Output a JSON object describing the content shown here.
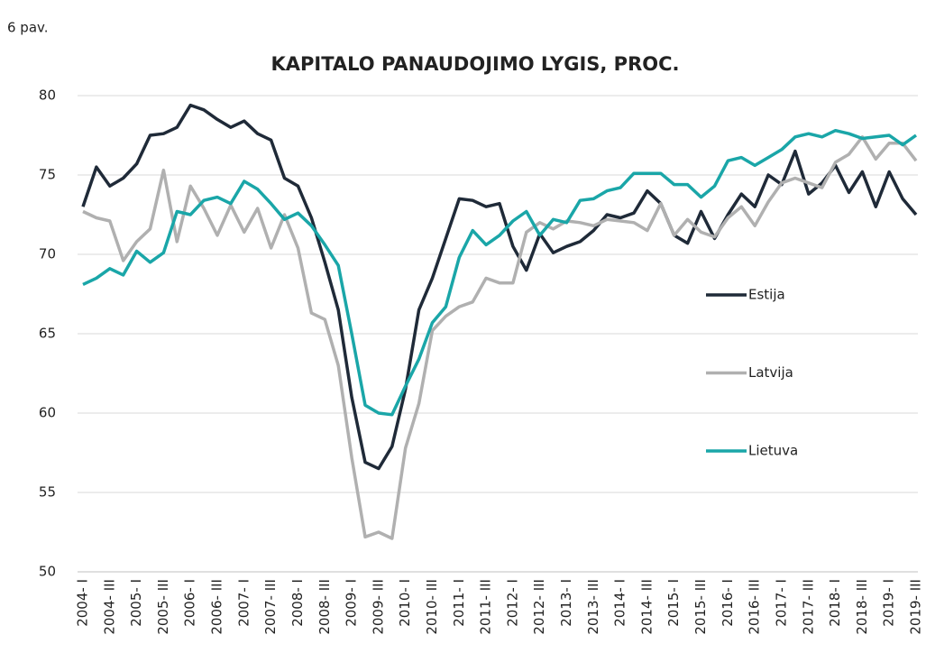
{
  "figure_label": "6 pav.",
  "chart_data": {
    "type": "line",
    "title": "KAPITALO PANAUDOJIMO LYGIS, PROC.",
    "categories": [
      "2004- I",
      null,
      "2004- III",
      null,
      "2005- I",
      null,
      "2005- III",
      null,
      "2006- I",
      null,
      "2006- III",
      null,
      "2007- I",
      null,
      "2007- III",
      null,
      "2008- I",
      null,
      "2008- III",
      null,
      "2009- I",
      null,
      "2009- III",
      null,
      "2010- I",
      null,
      "2010- III",
      null,
      "2011- I",
      null,
      "2011- III",
      null,
      "2012- I",
      null,
      "2012- III",
      null,
      "2013- I",
      null,
      "2013- III",
      null,
      "2014- I",
      null,
      "2014- III",
      null,
      "2015- I",
      null,
      "2015- III",
      null,
      "2016- I",
      null,
      "2016- III",
      null,
      "2017- I",
      null,
      "2017- III",
      null,
      "2018- I",
      null,
      "2018- III",
      null,
      "2019- I",
      null,
      "2019- III"
    ],
    "series": [
      {
        "name": "Estija",
        "color": "#1f2a38",
        "values": [
          73.0,
          75.5,
          74.3,
          74.8,
          75.7,
          77.5,
          77.6,
          78.0,
          79.4,
          79.1,
          78.5,
          78.0,
          78.4,
          77.6,
          77.2,
          74.8,
          74.3,
          72.3,
          69.5,
          66.5,
          61.0,
          56.9,
          56.5,
          57.9,
          61.5,
          66.5,
          68.5,
          71.0,
          73.5,
          73.4,
          73.0,
          73.2,
          70.5,
          69.0,
          71.3,
          70.1,
          70.5,
          70.8,
          71.5,
          72.5,
          72.3,
          72.6,
          74.0,
          73.2,
          71.2,
          70.7,
          72.7,
          71.0,
          72.5,
          73.8,
          73.0,
          75.0,
          74.4,
          76.5,
          73.8,
          74.5,
          75.6,
          73.9,
          75.2,
          73.0,
          75.2,
          73.5,
          72.5
        ]
      },
      {
        "name": "Latvija",
        "color": "#b0b0b0",
        "values": [
          72.7,
          72.3,
          72.1,
          69.6,
          70.8,
          71.6,
          75.3,
          70.8,
          74.3,
          72.9,
          71.2,
          73.1,
          71.4,
          72.9,
          70.4,
          72.5,
          70.4,
          66.3,
          65.9,
          63.0,
          57.2,
          52.2,
          52.5,
          52.1,
          57.8,
          60.6,
          65.2,
          66.1,
          66.7,
          67.0,
          68.5,
          68.2,
          68.2,
          71.4,
          72.0,
          71.6,
          72.1,
          72.0,
          71.8,
          72.2,
          72.1,
          72.0,
          71.5,
          73.2,
          71.2,
          72.2,
          71.4,
          71.1,
          72.3,
          73.0,
          71.8,
          73.3,
          74.5,
          74.8,
          74.5,
          74.2,
          75.8,
          76.3,
          77.4,
          76.0,
          77.0,
          77.0,
          75.9
        ]
      },
      {
        "name": "Lietuva",
        "color": "#1aa6a8",
        "values": [
          68.1,
          68.5,
          69.1,
          68.7,
          70.2,
          69.5,
          70.1,
          72.7,
          72.5,
          73.4,
          73.6,
          73.2,
          74.6,
          74.1,
          73.2,
          72.2,
          72.6,
          71.8,
          70.6,
          69.3,
          65.0,
          60.5,
          60.0,
          59.9,
          61.7,
          63.4,
          65.7,
          66.7,
          69.8,
          71.5,
          70.6,
          71.2,
          72.1,
          72.7,
          71.2,
          72.2,
          72.0,
          73.4,
          73.5,
          74.0,
          74.2,
          75.1,
          75.1,
          75.1,
          74.4,
          74.4,
          73.6,
          74.3,
          75.9,
          76.1,
          75.6,
          76.1,
          76.6,
          77.4,
          77.6,
          77.4,
          77.8,
          77.6,
          77.3,
          77.4,
          77.5,
          76.9,
          77.5
        ]
      }
    ],
    "ylim": [
      50,
      80
    ],
    "yticks": [
      50,
      55,
      60,
      65,
      70,
      75,
      80
    ],
    "grid": true,
    "legend": "right"
  }
}
